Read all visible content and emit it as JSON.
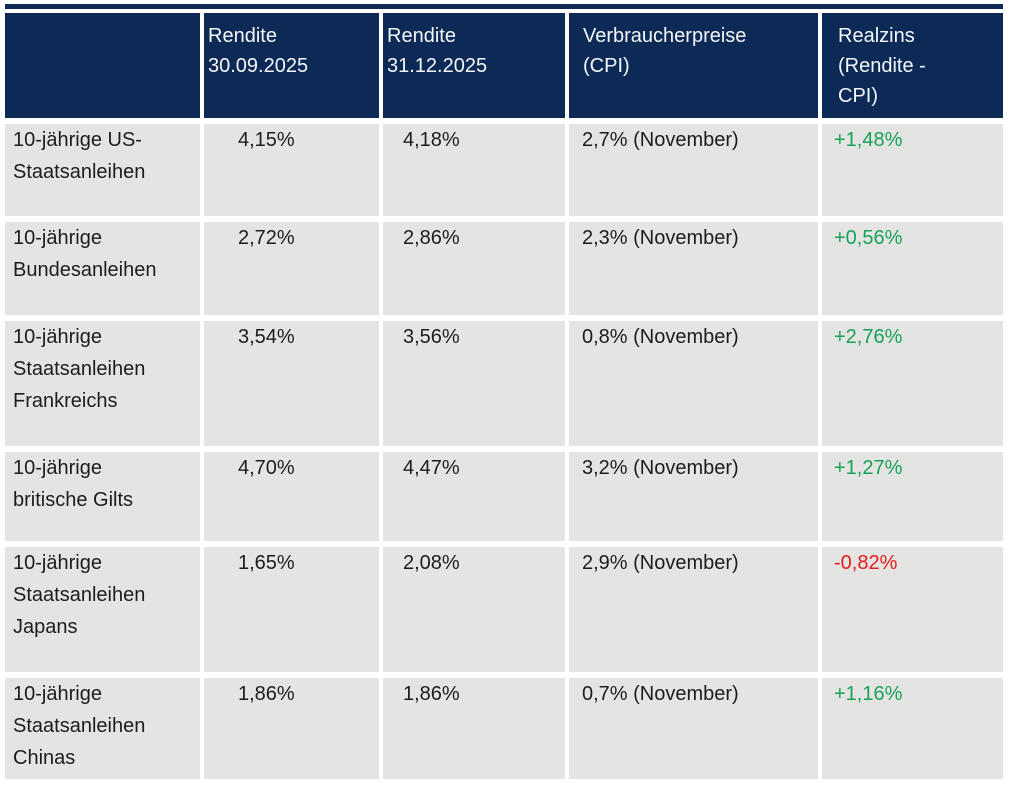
{
  "colors": {
    "header_bg": "#0d2a56",
    "header_text": "#f5f7fa",
    "row_bg": "#e4e4e2",
    "body_text": "#1d1d1b",
    "positive": "#17a25a",
    "negative": "#e02020"
  },
  "table": {
    "header": {
      "col_labels": [
        "",
        "Rendite\n30.09.2025",
        "Rendite\n31.12.2025",
        "Verbraucherpreise\n(CPI)",
        "Realzins\n(Rendite -\nCPI)"
      ]
    },
    "rows": [
      {
        "label": "10-jährige US-\nStaatsanleihen",
        "rendite_sep": "4,15%",
        "rendite_dec": "4,18%",
        "cpi": "2,7% (November)",
        "realzins": "+1,48%",
        "realzins_state": "positive"
      },
      {
        "label": "10-jährige\nBundesanleihen",
        "rendite_sep": "2,72%",
        "rendite_dec": "2,86%",
        "cpi": "2,3% (November)",
        "realzins": "+0,56%",
        "realzins_state": "positive"
      },
      {
        "label": "10-jährige\nStaatsanleihen\nFrankreichs",
        "rendite_sep": "3,54%",
        "rendite_dec": "3,56%",
        "cpi": "0,8% (November)",
        "realzins": "+2,76%",
        "realzins_state": "positive"
      },
      {
        "label": "10-jährige\nbritische Gilts",
        "rendite_sep": "4,70%",
        "rendite_dec": "4,47%",
        "cpi": "3,2% (November)",
        "realzins": "+1,27%",
        "realzins_state": "positive"
      },
      {
        "label": "10-jährige\nStaatsanleihen\nJapans",
        "rendite_sep": "1,65%",
        "rendite_dec": "2,08%",
        "cpi": "2,9% (November)",
        "realzins": "-0,82%",
        "realzins_state": "negative"
      },
      {
        "label": "10-jährige\nStaatsanleihen\nChinas",
        "rendite_sep": "1,86%",
        "rendite_dec": "1,86%",
        "cpi": "0,7% (November)",
        "realzins": "+1,16%",
        "realzins_state": "positive"
      }
    ]
  }
}
